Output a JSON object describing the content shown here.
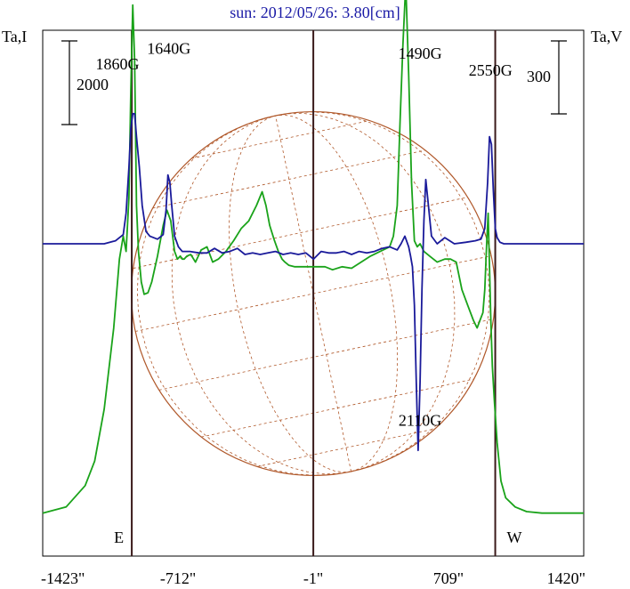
{
  "chart_data": {
    "type": "line",
    "title": "sun: 2012/05/26: 3.80[cm]",
    "left_axis_label": "Ta,I",
    "right_axis_label": "Ta,V",
    "left_scale_label": "2000",
    "right_scale_label": "300",
    "x_ticks": [
      "-1423\"",
      "-712\"",
      "-1\"",
      "709\"",
      "1420\""
    ],
    "x_tick_values": [
      -1423,
      -712,
      -1,
      709,
      1420
    ],
    "xlim": [
      -1423,
      1420
    ],
    "limb_markers": [
      {
        "label": "E",
        "x": -955
      },
      {
        "label": "W",
        "x": 955
      }
    ],
    "center_marker": {
      "x": -1
    },
    "annotations": [
      {
        "text": "1860G",
        "x": -1030,
        "y": 1.14
      },
      {
        "text": "1640G",
        "x": -760,
        "y": 1.24
      },
      {
        "text": "1490G",
        "x": 560,
        "y": 1.21
      },
      {
        "text": "2550G",
        "x": 930,
        "y": 1.1
      },
      {
        "text": "2110G",
        "x": 560,
        "y": -1.19
      }
    ],
    "series": [
      {
        "color": "#1aa31a",
        "x": [
          -1423,
          -1300,
          -1200,
          -1150,
          -1100,
          -1050,
          -1020,
          -1000,
          -985,
          -970,
          -960,
          -950,
          -940,
          -930,
          -920,
          -905,
          -890,
          -870,
          -850,
          -820,
          -790,
          -770,
          -750,
          -730,
          -715,
          -700,
          -690,
          -680,
          -665,
          -645,
          -620,
          -590,
          -560,
          -530,
          -500,
          -460,
          -420,
          -380,
          -340,
          -300,
          -270,
          -250,
          -230,
          -205,
          -185,
          -165,
          -150,
          -130,
          -100,
          -60,
          -20,
          20,
          60,
          100,
          150,
          200,
          250,
          300,
          350,
          400,
          420,
          440,
          455,
          470,
          485,
          500,
          515,
          530,
          545,
          560,
          580,
          610,
          650,
          690,
          720,
          750,
          780,
          810,
          840,
          860,
          875,
          890,
          900,
          910,
          918,
          925,
          932,
          940,
          950,
          965,
          985,
          1010,
          1060,
          1120,
          1200,
          1300,
          1420
        ],
        "y": [
          -1.76,
          -1.72,
          -1.58,
          -1.42,
          -1.08,
          -0.55,
          -0.1,
          0.05,
          -0.05,
          0.3,
          1.0,
          1.56,
          1.2,
          0.25,
          -0.05,
          -0.25,
          -0.33,
          -0.32,
          -0.25,
          -0.08,
          0.12,
          0.22,
          0.15,
          -0.05,
          -0.1,
          -0.08,
          -0.1,
          -0.1,
          -0.08,
          -0.07,
          -0.12,
          -0.04,
          -0.02,
          -0.12,
          -0.1,
          -0.05,
          0.02,
          0.1,
          0.15,
          0.25,
          0.34,
          0.25,
          0.12,
          0.02,
          -0.05,
          -0.1,
          -0.12,
          -0.14,
          -0.15,
          -0.15,
          -0.15,
          -0.15,
          -0.15,
          -0.17,
          -0.15,
          -0.16,
          -0.12,
          -0.08,
          -0.05,
          -0.02,
          0.05,
          0.25,
          0.8,
          1.3,
          1.7,
          1.1,
          0.4,
          0.02,
          -0.02,
          0.0,
          -0.05,
          -0.08,
          -0.12,
          -0.1,
          -0.1,
          -0.12,
          -0.3,
          -0.4,
          -0.5,
          -0.55,
          -0.5,
          -0.45,
          -0.3,
          0.0,
          0.2,
          -0.15,
          -0.5,
          -0.8,
          -1.02,
          -1.3,
          -1.55,
          -1.66,
          -1.72,
          -1.75,
          -1.76,
          -1.76,
          -1.76
        ]
      },
      {
        "color": "#1a1a9a",
        "x": [
          -1423,
          -1300,
          -1200,
          -1100,
          -1040,
          -1000,
          -985,
          -970,
          -960,
          -950,
          -940,
          -930,
          -915,
          -900,
          -880,
          -860,
          -820,
          -790,
          -775,
          -765,
          -755,
          -745,
          -730,
          -710,
          -690,
          -650,
          -600,
          -560,
          -520,
          -480,
          -440,
          -400,
          -360,
          -320,
          -280,
          -240,
          -200,
          -160,
          -120,
          -80,
          -40,
          0,
          40,
          80,
          120,
          160,
          200,
          240,
          280,
          320,
          360,
          400,
          440,
          460,
          480,
          500,
          510,
          520,
          530,
          540,
          550,
          560,
          570,
          580,
          590,
          600,
          620,
          650,
          690,
          740,
          800,
          850,
          880,
          900,
          915,
          925,
          935,
          945,
          955,
          965,
          980,
          1000,
          1050,
          1150,
          1300,
          1420
        ],
        "y": [
          0.0,
          0.0,
          0.0,
          0.0,
          0.02,
          0.06,
          0.2,
          0.5,
          0.75,
          0.85,
          0.85,
          0.7,
          0.5,
          0.25,
          0.08,
          0.05,
          0.03,
          0.06,
          0.22,
          0.45,
          0.4,
          0.25,
          0.05,
          -0.02,
          -0.05,
          -0.05,
          -0.06,
          -0.06,
          -0.03,
          -0.06,
          -0.05,
          -0.03,
          -0.07,
          -0.06,
          -0.07,
          -0.06,
          -0.05,
          -0.07,
          -0.06,
          -0.07,
          -0.06,
          -0.1,
          -0.05,
          -0.06,
          -0.06,
          -0.05,
          -0.07,
          -0.05,
          -0.06,
          -0.05,
          -0.03,
          -0.02,
          -0.04,
          0.0,
          0.05,
          -0.02,
          -0.08,
          -0.15,
          -0.4,
          -0.9,
          -1.35,
          -0.9,
          -0.3,
          0.15,
          0.42,
          0.3,
          0.05,
          0.0,
          0.04,
          0.0,
          0.01,
          0.02,
          0.03,
          0.1,
          0.4,
          0.7,
          0.65,
          0.35,
          0.1,
          0.04,
          0.01,
          0.0,
          0.0,
          0.0,
          0.0,
          0.0
        ]
      }
    ]
  }
}
